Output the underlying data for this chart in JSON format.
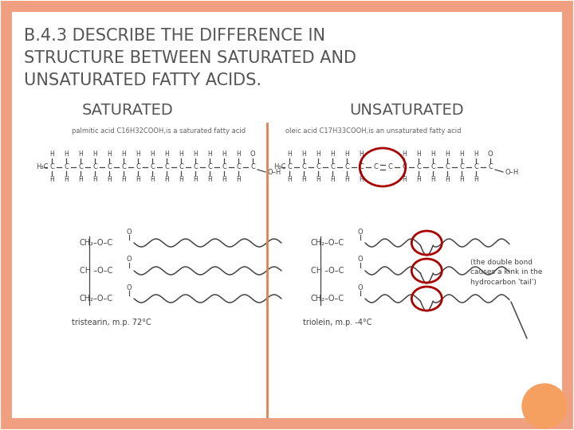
{
  "title_line1": "B.4.3 DESCRIBE THE DIFFERENCE IN",
  "title_line2": "STRUCTURE BETWEEN SATURATED AND",
  "title_line3": "UNSATURATED FATTY ACIDS.",
  "title_fontsize": 15,
  "title_color": "#555555",
  "background_color": "#ffffff",
  "border_color": "#f0a080",
  "border_lw": 10,
  "sat_label": "SATURATED",
  "unsat_label": "UNSATURATED",
  "label_fontsize": 14,
  "divider_color": "#e08050",
  "orange_circle_color": "#f5a060",
  "sat_caption1": "palmitic acid C16H32COOH,is a saturated fatty acid",
  "unsat_caption1": "oleic acid C17H33COOH,is an unsaturated fatty acid",
  "sat_caption2": "tristearin, m.p. 72°C",
  "unsat_caption2": "triolein, m.p. -4°C",
  "annotation_text": "(the double bond\ncauses a kink in the\nhydrocarbon 'tail')"
}
